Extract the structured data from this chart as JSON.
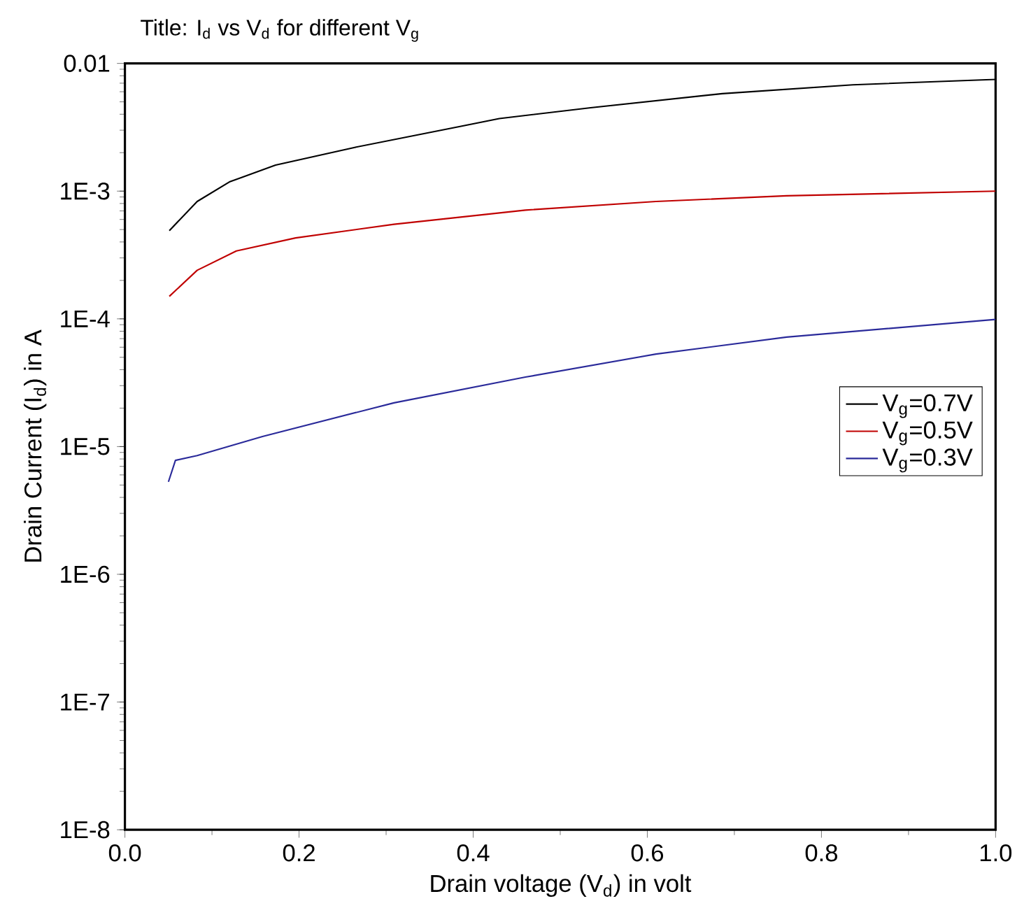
{
  "chart_data": {
    "type": "line",
    "title": "Title: I$_{d}$ vs V$_{d}$ for different V$_{g}$",
    "xlabel": "Drain voltage (V$_{d}$) in volt",
    "ylabel": "Drain Current (I$_{d}$) in A",
    "log": "y",
    "legend": "right",
    "marker": "none",
    "line_style": "solid",
    "xlim": [
      0,
      1
    ],
    "ylim": [
      1e-08,
      0.01
    ],
    "xticks": [
      {
        "value": 0,
        "label": "0.0"
      },
      {
        "value": 0.2,
        "label": "0.2"
      },
      {
        "value": 0.4,
        "label": "0.4"
      },
      {
        "value": 0.6,
        "label": "0.6"
      },
      {
        "value": 0.8,
        "label": "0.8"
      },
      {
        "value": 1,
        "label": "1.0"
      }
    ],
    "yticks": [
      {
        "value": 1e-08,
        "label": "1E-8"
      },
      {
        "value": 1e-07,
        "label": "1E-7"
      },
      {
        "value": 1e-06,
        "label": "1E-6"
      },
      {
        "value": 1e-05,
        "label": "1E-5"
      },
      {
        "value": 0.0001,
        "label": "1E-4"
      },
      {
        "value": 0.001,
        "label": "1E-3"
      },
      0.01
    ],
    "series": [
      {
        "name": "V$_{g}$=0.7V",
        "color": "#000000",
        "x": [
          0.051,
          0.083,
          0.12,
          0.173,
          0.264,
          0.384,
          0.43,
          0.535,
          0.686,
          0.836,
          1.0
        ],
        "values": [
          0.00049,
          0.00083,
          0.00118,
          0.0016,
          0.0022,
          0.0032,
          0.0037,
          0.0045,
          0.0058,
          0.0068,
          0.0075
        ]
      },
      {
        "name": "V$_{g}$=0.5V",
        "color": "#c00000",
        "x": [
          0.051,
          0.083,
          0.128,
          0.196,
          0.309,
          0.46,
          0.61,
          0.76,
          1.0
        ],
        "values": [
          0.00015,
          0.00024,
          0.00034,
          0.00043,
          0.00055,
          0.00071,
          0.00083,
          0.00092,
          0.001
        ]
      },
      {
        "name": "V$_{g}$=0.3V",
        "color": "#2a2a9a",
        "x": [
          0.05,
          0.058,
          0.083,
          0.158,
          0.309,
          0.46,
          0.61,
          0.76,
          1.0
        ],
        "values": [
          5.3e-06,
          7.8e-06,
          8.5e-06,
          1.2e-05,
          2.2e-05,
          3.5e-05,
          5.3e-05,
          7.2e-05,
          9.9e-05
        ]
      }
    ]
  }
}
